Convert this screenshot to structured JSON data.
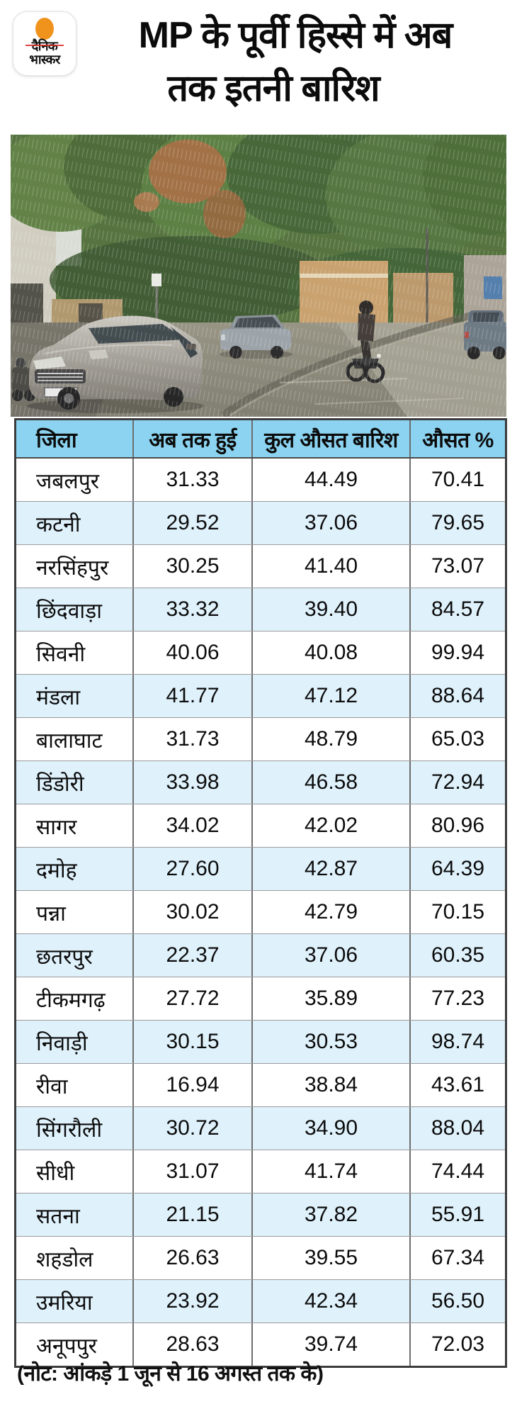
{
  "brand": {
    "logo_line1": "दैनिक",
    "logo_line2": "भास्कर"
  },
  "header": {
    "title_line1": "MP के पूर्वी हिस्से में अब",
    "title_line2": "तक इतनी बारिश"
  },
  "table": {
    "columns": [
      "जिला",
      "अब तक हुई",
      "कुल औसत बारिश",
      "औसत %"
    ],
    "rows": [
      {
        "district": "जबलपुर",
        "so_far": "31.33",
        "total_avg": "44.49",
        "avg_pct": "70.41"
      },
      {
        "district": "कटनी",
        "so_far": "29.52",
        "total_avg": "37.06",
        "avg_pct": "79.65"
      },
      {
        "district": "नरसिंहपुर",
        "so_far": "30.25",
        "total_avg": "41.40",
        "avg_pct": "73.07"
      },
      {
        "district": "छिंदवाड़ा",
        "so_far": "33.32",
        "total_avg": "39.40",
        "avg_pct": "84.57"
      },
      {
        "district": "सिवनी",
        "so_far": "40.06",
        "total_avg": "40.08",
        "avg_pct": "99.94"
      },
      {
        "district": "मंडला",
        "so_far": "41.77",
        "total_avg": "47.12",
        "avg_pct": "88.64"
      },
      {
        "district": "बालाघाट",
        "so_far": "31.73",
        "total_avg": "48.79",
        "avg_pct": "65.03"
      },
      {
        "district": "डिंडोरी",
        "so_far": "33.98",
        "total_avg": "46.58",
        "avg_pct": "72.94"
      },
      {
        "district": "सागर",
        "so_far": "34.02",
        "total_avg": "42.02",
        "avg_pct": "80.96"
      },
      {
        "district": "दमोह",
        "so_far": "27.60",
        "total_avg": "42.87",
        "avg_pct": "64.39"
      },
      {
        "district": "पन्ना",
        "so_far": "30.02",
        "total_avg": "42.79",
        "avg_pct": "70.15"
      },
      {
        "district": "छतरपुर",
        "so_far": "22.37",
        "total_avg": "37.06",
        "avg_pct": "60.35"
      },
      {
        "district": "टीकमगढ़",
        "so_far": "27.72",
        "total_avg": "35.89",
        "avg_pct": "77.23"
      },
      {
        "district": "निवाड़ी",
        "so_far": "30.15",
        "total_avg": "30.53",
        "avg_pct": "98.74"
      },
      {
        "district": "रीवा",
        "so_far": "16.94",
        "total_avg": "38.84",
        "avg_pct": "43.61"
      },
      {
        "district": "सिंगरौली",
        "so_far": "30.72",
        "total_avg": "34.90",
        "avg_pct": "88.04"
      },
      {
        "district": "सीधी",
        "so_far": "31.07",
        "total_avg": "41.74",
        "avg_pct": "74.44"
      },
      {
        "district": "सतना",
        "so_far": "21.15",
        "total_avg": "37.82",
        "avg_pct": "55.91"
      },
      {
        "district": "शहडोल",
        "so_far": "26.63",
        "total_avg": "39.55",
        "avg_pct": "67.34"
      },
      {
        "district": "उमरिया",
        "so_far": "23.92",
        "total_avg": "42.34",
        "avg_pct": "56.50"
      },
      {
        "district": "अनूपपुर",
        "so_far": "28.63",
        "total_avg": "39.74",
        "avg_pct": "72.03"
      }
    ]
  },
  "note": "(नोट: आंकड़े 1 जून से 16 अगस्त तक के)",
  "colors": {
    "header_bg": "#8BD3F0",
    "row_alt_bg": "#DFF1FB",
    "brand_orange": "#F0931D",
    "logo_red": "#D6251F",
    "table_border": "#3C3C3C"
  },
  "chart_data": {
    "type": "table",
    "title": "MP के पूर्वी हिस्से में अब तक इतनी बारिश",
    "columns": [
      "जिला",
      "अब तक हुई",
      "कुल औसत बारिश",
      "औसत %"
    ],
    "rows": [
      [
        "जबलपुर",
        31.33,
        44.49,
        70.41
      ],
      [
        "कटनी",
        29.52,
        37.06,
        79.65
      ],
      [
        "नरसिंहपुर",
        30.25,
        41.4,
        73.07
      ],
      [
        "छिंदवाड़ा",
        33.32,
        39.4,
        84.57
      ],
      [
        "सिवनी",
        40.06,
        40.08,
        99.94
      ],
      [
        "मंडला",
        41.77,
        47.12,
        88.64
      ],
      [
        "बालाघाट",
        31.73,
        48.79,
        65.03
      ],
      [
        "डिंडोरी",
        33.98,
        46.58,
        72.94
      ],
      [
        "सागर",
        34.02,
        42.02,
        80.96
      ],
      [
        "दमोह",
        27.6,
        42.87,
        64.39
      ],
      [
        "पन्ना",
        30.02,
        42.79,
        70.15
      ],
      [
        "छतरपुर",
        22.37,
        37.06,
        60.35
      ],
      [
        "टीकमगढ़",
        27.72,
        35.89,
        77.23
      ],
      [
        "निवाड़ी",
        30.15,
        30.53,
        98.74
      ],
      [
        "रीवा",
        16.94,
        38.84,
        43.61
      ],
      [
        "सिंगरौली",
        30.72,
        34.9,
        88.04
      ],
      [
        "सीधी",
        31.07,
        41.74,
        74.44
      ],
      [
        "सतना",
        21.15,
        37.82,
        55.91
      ],
      [
        "शहडोल",
        26.63,
        39.55,
        67.34
      ],
      [
        "उमरिया",
        23.92,
        42.34,
        56.5
      ],
      [
        "अनूपपुर",
        28.63,
        39.74,
        72.03
      ]
    ],
    "note": "(नोट: आंकड़े 1 जून से 16 अगस्त तक के)"
  }
}
